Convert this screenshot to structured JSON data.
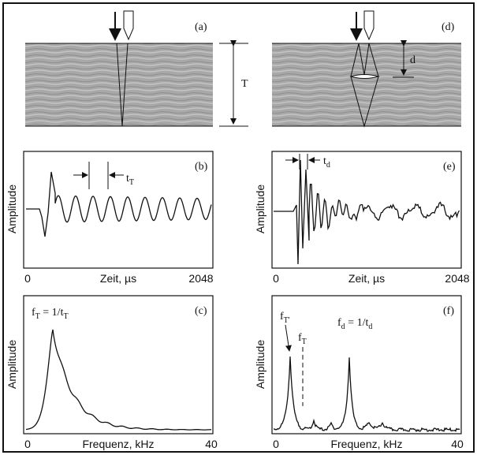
{
  "panels": {
    "a": "(a)",
    "b": "(b)",
    "c": "(c)",
    "d": "(d)",
    "e": "(e)",
    "f": "(f)"
  },
  "thickness_label": "T",
  "depth_label": "d",
  "amplitude_labels": [
    "Amplitude",
    "Amplitude",
    "Amplitude",
    "Amplitude"
  ],
  "time_axis": {
    "label": "Zeit, µs",
    "start": "0",
    "end": "2048"
  },
  "time_axis_right": {
    "label": "Zeit, µs",
    "start": "0",
    "end": "2048"
  },
  "freq_axis": {
    "label": "Frequenz, kHz",
    "start": "0",
    "end": "40"
  },
  "freq_axis_right": {
    "label": "Frequenz, kHz",
    "start": "0",
    "end": "40"
  },
  "period_b": [
    "t",
    "T"
  ],
  "period_e": [
    "t",
    "d"
  ],
  "formula_c": [
    "f",
    "T",
    " = 1/t",
    "T"
  ],
  "peak_f1": [
    "f",
    "T'"
  ],
  "peak_f2": [
    "f",
    "T"
  ],
  "formula_f": [
    "f",
    "d",
    " =  1/t",
    "d"
  ]
}
